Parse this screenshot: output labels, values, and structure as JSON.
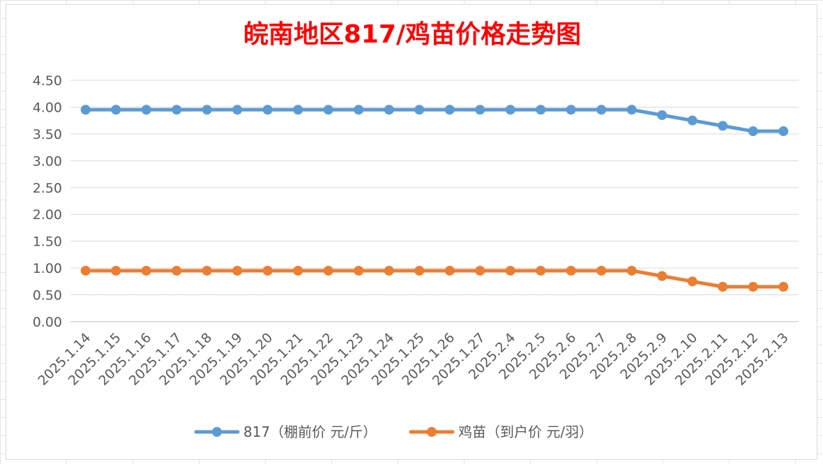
{
  "chart_data": {
    "type": "line",
    "title": "皖南地区817/鸡苗价格走势图",
    "xlabel": "",
    "ylabel": "",
    "ylim": [
      0,
      4.5
    ],
    "yticks": [
      "0.00",
      "0.50",
      "1.00",
      "1.50",
      "2.00",
      "2.50",
      "3.00",
      "3.50",
      "4.00",
      "4.50"
    ],
    "grid": true,
    "legend_position": "bottom",
    "categories": [
      "2025.1.14",
      "2025.1.15",
      "2025.1.16",
      "2025.1.17",
      "2025.1.18",
      "2025.1.19",
      "2025.1.20",
      "2025.1.21",
      "2025.1.22",
      "2025.1.23",
      "2025.1.24",
      "2025.1.25",
      "2025.1.26",
      "2025.1.27",
      "2025.2.4",
      "2025.2.5",
      "2025.2.6",
      "2025.2.7",
      "2025.2.8",
      "2025.2.9",
      "2025.2.10",
      "2025.2.11",
      "2025.2.12",
      "2025.2.13"
    ],
    "series": [
      {
        "name": "817（棚前价 元/斤）",
        "color": "#5b9bd5",
        "values": [
          3.95,
          3.95,
          3.95,
          3.95,
          3.95,
          3.95,
          3.95,
          3.95,
          3.95,
          3.95,
          3.95,
          3.95,
          3.95,
          3.95,
          3.95,
          3.95,
          3.95,
          3.95,
          3.95,
          3.85,
          3.75,
          3.65,
          3.55,
          3.55
        ]
      },
      {
        "name": "鸡苗（到户价 元/羽）",
        "color": "#ed7d31",
        "values": [
          0.95,
          0.95,
          0.95,
          0.95,
          0.95,
          0.95,
          0.95,
          0.95,
          0.95,
          0.95,
          0.95,
          0.95,
          0.95,
          0.95,
          0.95,
          0.95,
          0.95,
          0.95,
          0.95,
          0.85,
          0.75,
          0.65,
          0.65,
          0.65
        ]
      }
    ]
  }
}
